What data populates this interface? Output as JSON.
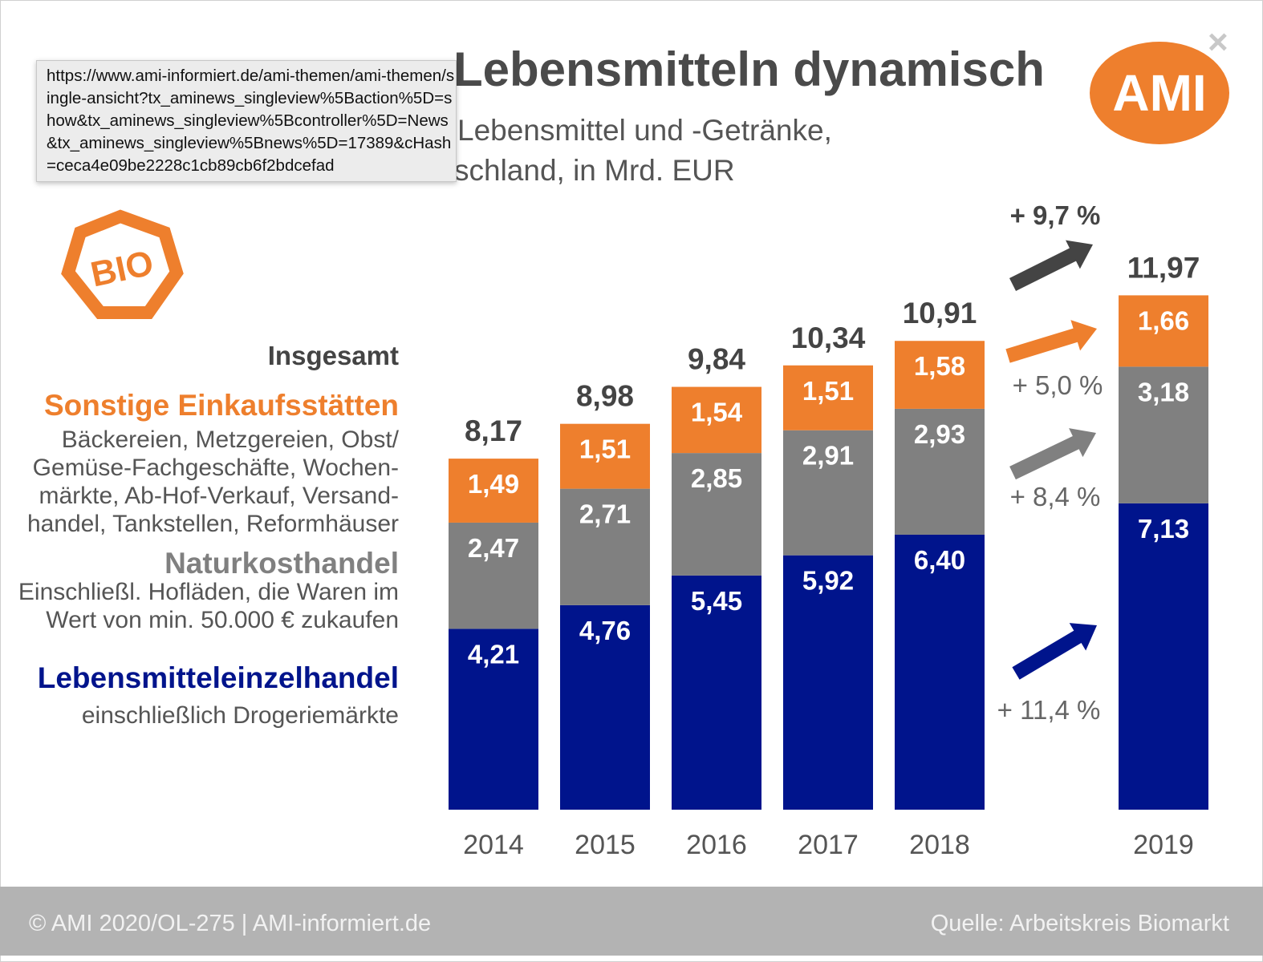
{
  "title": "Lebensmitteln dynamisch",
  "title_full_hidden_alt": "Umsätze mit Bio-Lebensmitteln dynamisch",
  "subtitle": [
    "Lebensmittel  und -Getränke,",
    "schland, in Mrd. EUR"
  ],
  "tooltip": "https://www.ami-informiert.de/ami-themen/ami-themen/single-ansicht?tx_aminews_singleview%5Baction%5D=show&tx_aminews_singleview%5Bcontroller%5D=News&tx_aminews_singleview%5Bnews%5D=17389&cHash=ceca4e09be2228c1cb89cb6f2bdcefad",
  "close_icon": "×",
  "logo": "AMI",
  "bio_logo": "BIO",
  "legend": {
    "total": "Insgesamt",
    "sonstige": {
      "label": "Sonstige Einkaufsstätten",
      "desc": [
        "Bäckereien, Metzgereien, Obst/",
        "Gemüse-Fachgeschäfte, Wochen-",
        "märkte, Ab-Hof-Verkauf, Versand-",
        "handel, Tankstellen, Reformhäuser"
      ]
    },
    "natur": {
      "label": "Naturkosthandel",
      "desc": [
        "Einschließl. Hofläden, die Waren im",
        "Wert von min. 50.000 € zukaufen"
      ]
    },
    "lebensmittel": {
      "label": "Lebensmitteleinzelhandel",
      "desc": [
        "einschließlich Drogeriemärkte"
      ]
    }
  },
  "colors": {
    "lebensmittel": "#00148c",
    "natur": "#808080",
    "sonstige": "#ee7f2d",
    "total": "#444444"
  },
  "chart_data": {
    "type": "bar",
    "stacked": true,
    "unit": "Mrd. EUR",
    "categories": [
      "2014",
      "2015",
      "2016",
      "2017",
      "2018",
      "2019"
    ],
    "series": [
      {
        "name": "Lebensmitteleinzelhandel",
        "values": [
          4.21,
          4.76,
          5.45,
          5.92,
          6.4,
          7.13
        ],
        "labels": [
          "4,21",
          "4,76",
          "5,45",
          "5,92",
          "6,40",
          "7,13"
        ]
      },
      {
        "name": "Naturkosthandel",
        "values": [
          2.47,
          2.71,
          2.85,
          2.91,
          2.93,
          3.18
        ],
        "labels": [
          "2,47",
          "2,71",
          "2,85",
          "2,91",
          "2,93",
          "3,18"
        ]
      },
      {
        "name": "Sonstige Einkaufsstätten",
        "values": [
          1.49,
          1.51,
          1.54,
          1.51,
          1.58,
          1.66
        ],
        "labels": [
          "1,49",
          "1,51",
          "1,54",
          "1,51",
          "1,58",
          "1,66"
        ]
      }
    ],
    "totals": [
      "8,17",
      "8,98",
      "9,84",
      "10,34",
      "10,91",
      "11,97"
    ],
    "growth_annotations": [
      {
        "series": "Insgesamt",
        "label": "+ 9,7 %"
      },
      {
        "series": "Sonstige Einkaufsstätten",
        "label": "+ 5,0 %"
      },
      {
        "series": "Naturkosthandel",
        "label": "+ 8,4 %"
      },
      {
        "series": "Lebensmitteleinzelhandel",
        "label": "+ 11,4 %"
      }
    ]
  },
  "footer": {
    "left": "© AMI 2020/OL-275 | AMI-informiert.de",
    "right": "Quelle: Arbeitskreis Biomarkt"
  }
}
